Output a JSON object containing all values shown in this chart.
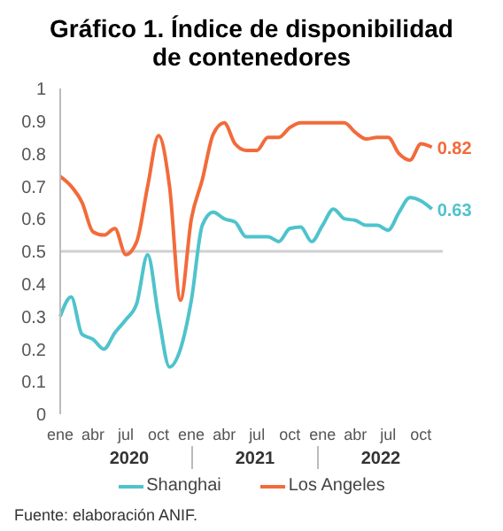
{
  "chart_data": {
    "type": "line",
    "title": "Gráfico 1. Índice de disponibilidad de contenedores",
    "categories": [
      "ene",
      null,
      null,
      "abr",
      null,
      null,
      "jul",
      null,
      null,
      "oct",
      null,
      null,
      "ene",
      null,
      null,
      "abr",
      null,
      null,
      "jul",
      null,
      null,
      "oct",
      null,
      null,
      "ene",
      null,
      null,
      "abr",
      null,
      null,
      "jul",
      null,
      null,
      "oct",
      null,
      null
    ],
    "series": [
      {
        "name": "Shanghai",
        "color": "#4fc3cc",
        "values": [
          0.3,
          0.36,
          0.245,
          0.23,
          0.2,
          0.25,
          0.29,
          0.34,
          0.49,
          0.3,
          0.145,
          0.2,
          0.35,
          0.58,
          0.62,
          0.6,
          0.59,
          0.545,
          0.545,
          0.545,
          0.53,
          0.57,
          0.575,
          0.53,
          0.58,
          0.63,
          0.6,
          0.595,
          0.58,
          0.58,
          0.565,
          0.62,
          0.665,
          0.655,
          0.63,
          null
        ],
        "value_labels": [
          null,
          null,
          null,
          null,
          null,
          null,
          null,
          null,
          null,
          null,
          null,
          null,
          null,
          null,
          null,
          null,
          null,
          null,
          null,
          null,
          null,
          null,
          null,
          null,
          null,
          null,
          null,
          null,
          null,
          null,
          null,
          null,
          null,
          null,
          "0.63",
          null
        ]
      },
      {
        "name": "Los Angeles",
        "color": "#f26b3a",
        "values": [
          0.73,
          0.7,
          0.65,
          0.56,
          0.55,
          0.57,
          0.49,
          0.53,
          0.7,
          0.855,
          0.7,
          0.35,
          0.6,
          0.72,
          0.86,
          0.895,
          0.83,
          0.81,
          0.81,
          0.85,
          0.85,
          0.88,
          0.895,
          0.895,
          0.895,
          0.895,
          0.895,
          0.865,
          0.845,
          0.85,
          0.85,
          0.8,
          0.78,
          0.83,
          0.82,
          null
        ],
        "value_labels": [
          null,
          null,
          null,
          null,
          null,
          null,
          null,
          null,
          null,
          null,
          null,
          null,
          null,
          null,
          null,
          null,
          null,
          null,
          null,
          null,
          null,
          null,
          null,
          null,
          null,
          null,
          null,
          null,
          null,
          null,
          null,
          null,
          null,
          null,
          "0.82",
          null
        ]
      }
    ],
    "ylim": [
      0,
      1
    ],
    "yticks": [
      0,
      0.1,
      0.2,
      0.3,
      0.4,
      0.5,
      0.6,
      0.7,
      0.8,
      0.9,
      1
    ],
    "ref_lines": [
      {
        "axis": "y",
        "value": 0.5,
        "label": null,
        "color": "#d0d0d0"
      }
    ],
    "grid": false,
    "legend": "bottom",
    "marker": "none",
    "line_style": "solid",
    "annotations": [
      "2020",
      "2021",
      "2022",
      "Fuente: elaboración ANIF."
    ]
  }
}
